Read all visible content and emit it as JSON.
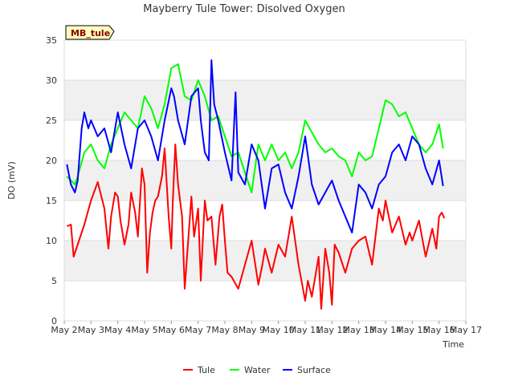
{
  "chart_data": {
    "type": "line",
    "title": "Mayberry Tule Tower: Disolved Oxygen",
    "xlabel": "Time",
    "ylabel": "DO (mV)",
    "tag": "MB_tule",
    "ylim": [
      0,
      35
    ],
    "yticks": [
      0,
      5,
      10,
      15,
      20,
      25,
      30,
      35
    ],
    "xlim": [
      2,
      17
    ],
    "xticks": [
      {
        "x": 2,
        "label": "May 2"
      },
      {
        "x": 3,
        "label": "May 3"
      },
      {
        "x": 4,
        "label": "May 4"
      },
      {
        "x": 5,
        "label": "May 5"
      },
      {
        "x": 6,
        "label": "May 6"
      },
      {
        "x": 7,
        "label": "May 7"
      },
      {
        "x": 8,
        "label": "May 8"
      },
      {
        "x": 9,
        "label": "May 9"
      },
      {
        "x": 10,
        "label": "May 10"
      },
      {
        "x": 11,
        "label": "May 11"
      },
      {
        "x": 12,
        "label": "May 12"
      },
      {
        "x": 13,
        "label": "May 13"
      },
      {
        "x": 14,
        "label": "May 14"
      },
      {
        "x": 15,
        "label": "May 15"
      },
      {
        "x": 16,
        "label": "May 16"
      },
      {
        "x": 17,
        "label": "May 17"
      }
    ],
    "grid": true,
    "legend_position": "bottom",
    "series": [
      {
        "name": "Tule",
        "color": "#ff0000",
        "x": [
          2.1,
          2.25,
          2.35,
          2.5,
          2.75,
          3.0,
          3.25,
          3.5,
          3.65,
          3.75,
          3.9,
          4.0,
          4.1,
          4.25,
          4.4,
          4.5,
          4.65,
          4.75,
          4.9,
          5.0,
          5.1,
          5.2,
          5.3,
          5.4,
          5.5,
          5.65,
          5.75,
          5.9,
          6.0,
          6.05,
          6.15,
          6.25,
          6.4,
          6.5,
          6.75,
          6.85,
          7.0,
          7.1,
          7.25,
          7.35,
          7.5,
          7.65,
          7.8,
          7.9,
          8.0,
          8.1,
          8.25,
          8.5,
          8.75,
          9.0,
          9.25,
          9.4,
          9.5,
          9.75,
          10.0,
          10.25,
          10.5,
          10.75,
          11.0,
          11.1,
          11.25,
          11.5,
          11.6,
          11.75,
          11.9,
          12.0,
          12.1,
          12.25,
          12.5,
          12.75,
          13.0,
          13.25,
          13.5,
          13.75,
          13.9,
          14.0,
          14.25,
          14.5,
          14.75,
          14.9,
          15.0,
          15.25,
          15.5,
          15.75,
          15.9,
          16.0,
          16.1,
          16.2
        ],
        "y": [
          11.8,
          12.0,
          8.0,
          9.5,
          12.0,
          15.0,
          17.3,
          14.0,
          9.0,
          13.0,
          16.0,
          15.5,
          12.5,
          9.5,
          12.0,
          16.0,
          13.5,
          10.5,
          19.0,
          17.0,
          6.0,
          11.0,
          13.5,
          15.0,
          15.5,
          18.0,
          21.5,
          13.0,
          9.0,
          14.5,
          22.0,
          17.0,
          13.0,
          4.0,
          15.5,
          10.5,
          14.0,
          5.0,
          15.0,
          12.5,
          13.0,
          7.0,
          13.0,
          14.5,
          10.0,
          6.0,
          5.5,
          4.0,
          7.0,
          10.0,
          4.5,
          7.0,
          9.0,
          6.0,
          9.5,
          8.0,
          13.0,
          7.0,
          2.5,
          5.0,
          3.0,
          8.0,
          1.5,
          9.0,
          6.0,
          2.0,
          9.5,
          8.5,
          6.0,
          9.0,
          10.0,
          10.5,
          7.0,
          14.0,
          12.5,
          15.0,
          11.0,
          13.0,
          9.5,
          11.0,
          10.0,
          12.5,
          8.0,
          11.5,
          9.0,
          13.0,
          13.5,
          12.8
        ]
      },
      {
        "name": "Water",
        "color": "#00ff00",
        "x": [
          2.1,
          2.25,
          2.4,
          2.5,
          2.75,
          3.0,
          3.25,
          3.5,
          3.75,
          4.0,
          4.25,
          4.5,
          4.75,
          5.0,
          5.25,
          5.5,
          5.75,
          6.0,
          6.25,
          6.5,
          6.75,
          7.0,
          7.25,
          7.5,
          7.75,
          8.0,
          8.25,
          8.5,
          8.75,
          9.0,
          9.25,
          9.5,
          9.75,
          10.0,
          10.25,
          10.5,
          10.75,
          11.0,
          11.25,
          11.5,
          11.75,
          12.0,
          12.25,
          12.5,
          12.75,
          13.0,
          13.25,
          13.5,
          13.75,
          14.0,
          14.25,
          14.5,
          14.75,
          15.0,
          15.25,
          15.5,
          15.75,
          16.0,
          16.15
        ],
        "y": [
          18.0,
          17.5,
          17.0,
          18.0,
          21.0,
          22.0,
          20.0,
          19.0,
          22.0,
          24.0,
          26.0,
          25.0,
          24.0,
          28.0,
          26.5,
          24.0,
          27.0,
          31.5,
          32.0,
          28.0,
          27.5,
          30.0,
          28.0,
          25.0,
          25.5,
          23.0,
          20.5,
          21.0,
          18.5,
          16.0,
          22.0,
          20.0,
          22.0,
          20.0,
          21.0,
          19.0,
          21.0,
          25.0,
          23.5,
          22.0,
          21.0,
          21.5,
          20.5,
          20.0,
          18.0,
          21.0,
          20.0,
          20.5,
          24.0,
          27.5,
          27.0,
          25.5,
          26.0,
          24.0,
          22.0,
          21.0,
          22.0,
          24.5,
          21.5
        ]
      },
      {
        "name": "Surface",
        "color": "#0000ff",
        "x": [
          2.1,
          2.25,
          2.4,
          2.5,
          2.65,
          2.75,
          2.9,
          3.0,
          3.25,
          3.5,
          3.75,
          4.0,
          4.25,
          4.5,
          4.75,
          5.0,
          5.25,
          5.5,
          5.75,
          6.0,
          6.1,
          6.25,
          6.5,
          6.75,
          7.0,
          7.1,
          7.25,
          7.4,
          7.5,
          7.6,
          7.75,
          8.0,
          8.25,
          8.4,
          8.5,
          8.75,
          9.0,
          9.25,
          9.5,
          9.75,
          10.0,
          10.25,
          10.5,
          10.75,
          11.0,
          11.25,
          11.5,
          11.75,
          12.0,
          12.25,
          12.5,
          12.75,
          13.0,
          13.25,
          13.5,
          13.75,
          14.0,
          14.25,
          14.5,
          14.75,
          15.0,
          15.25,
          15.5,
          15.75,
          16.0,
          16.15
        ],
        "y": [
          19.5,
          17.0,
          16.0,
          17.5,
          24.0,
          26.0,
          24.0,
          25.0,
          23.0,
          24.0,
          21.0,
          26.0,
          22.0,
          19.0,
          24.0,
          25.0,
          23.0,
          20.0,
          25.0,
          29.0,
          28.0,
          25.0,
          22.0,
          28.0,
          29.0,
          25.0,
          21.0,
          20.0,
          32.5,
          27.0,
          25.0,
          21.0,
          17.5,
          28.5,
          18.5,
          17.0,
          22.0,
          20.0,
          14.0,
          19.0,
          19.5,
          16.0,
          14.0,
          18.0,
          23.0,
          17.0,
          14.5,
          16.0,
          17.5,
          15.0,
          13.0,
          11.0,
          17.0,
          16.0,
          14.0,
          17.0,
          18.0,
          21.0,
          22.0,
          20.0,
          23.0,
          22.0,
          19.0,
          17.0,
          20.0,
          16.8
        ]
      }
    ]
  }
}
